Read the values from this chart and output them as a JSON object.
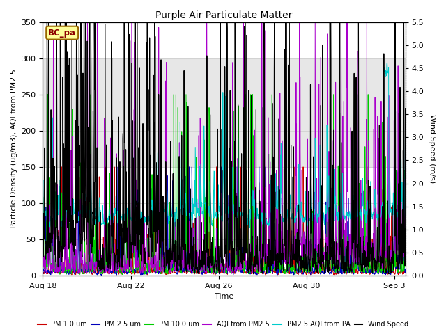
{
  "title": "Purple Air Particulate Matter",
  "ylabel_left": "Particle Density (ug/m3), AQI from PM2.5",
  "ylabel_right": "Wind Speed (m/s)",
  "xlabel": "Time",
  "xlim_days": [
    0,
    16.5
  ],
  "ylim_left": [
    0,
    350
  ],
  "ylim_right": [
    0,
    5.5
  ],
  "yticks_left": [
    0,
    50,
    100,
    150,
    200,
    250,
    300,
    350
  ],
  "yticks_right": [
    0.0,
    0.5,
    1.0,
    1.5,
    2.0,
    2.5,
    3.0,
    3.5,
    4.0,
    4.5,
    5.0,
    5.5
  ],
  "shaded_region": [
    150,
    300
  ],
  "legend_label": "BC_pa",
  "legend_box_color": "#FFFF99",
  "legend_box_edge": "#996600",
  "series_colors": {
    "pm1": "#cc0000",
    "pm25": "#0000bb",
    "pm10": "#00cc00",
    "aqi": "#aa00cc",
    "aqi_pa": "#00cccc",
    "wind": "#000000"
  },
  "series_labels": {
    "pm1": "PM 1.0 um",
    "pm25": "PM 2.5 um",
    "pm10": "PM 10.0 um",
    "aqi": "AQI from PM2.5",
    "aqi_pa": "PM2.5 AQI from PA",
    "wind": "Wind Speed"
  },
  "xtick_labels": [
    "Aug 18",
    "Aug 22",
    "Aug 26",
    "Aug 30",
    "Sep 3"
  ],
  "xtick_positions": [
    0,
    4,
    8,
    12,
    16
  ],
  "title_fontsize": 10,
  "axis_fontsize": 8,
  "tick_fontsize": 8
}
